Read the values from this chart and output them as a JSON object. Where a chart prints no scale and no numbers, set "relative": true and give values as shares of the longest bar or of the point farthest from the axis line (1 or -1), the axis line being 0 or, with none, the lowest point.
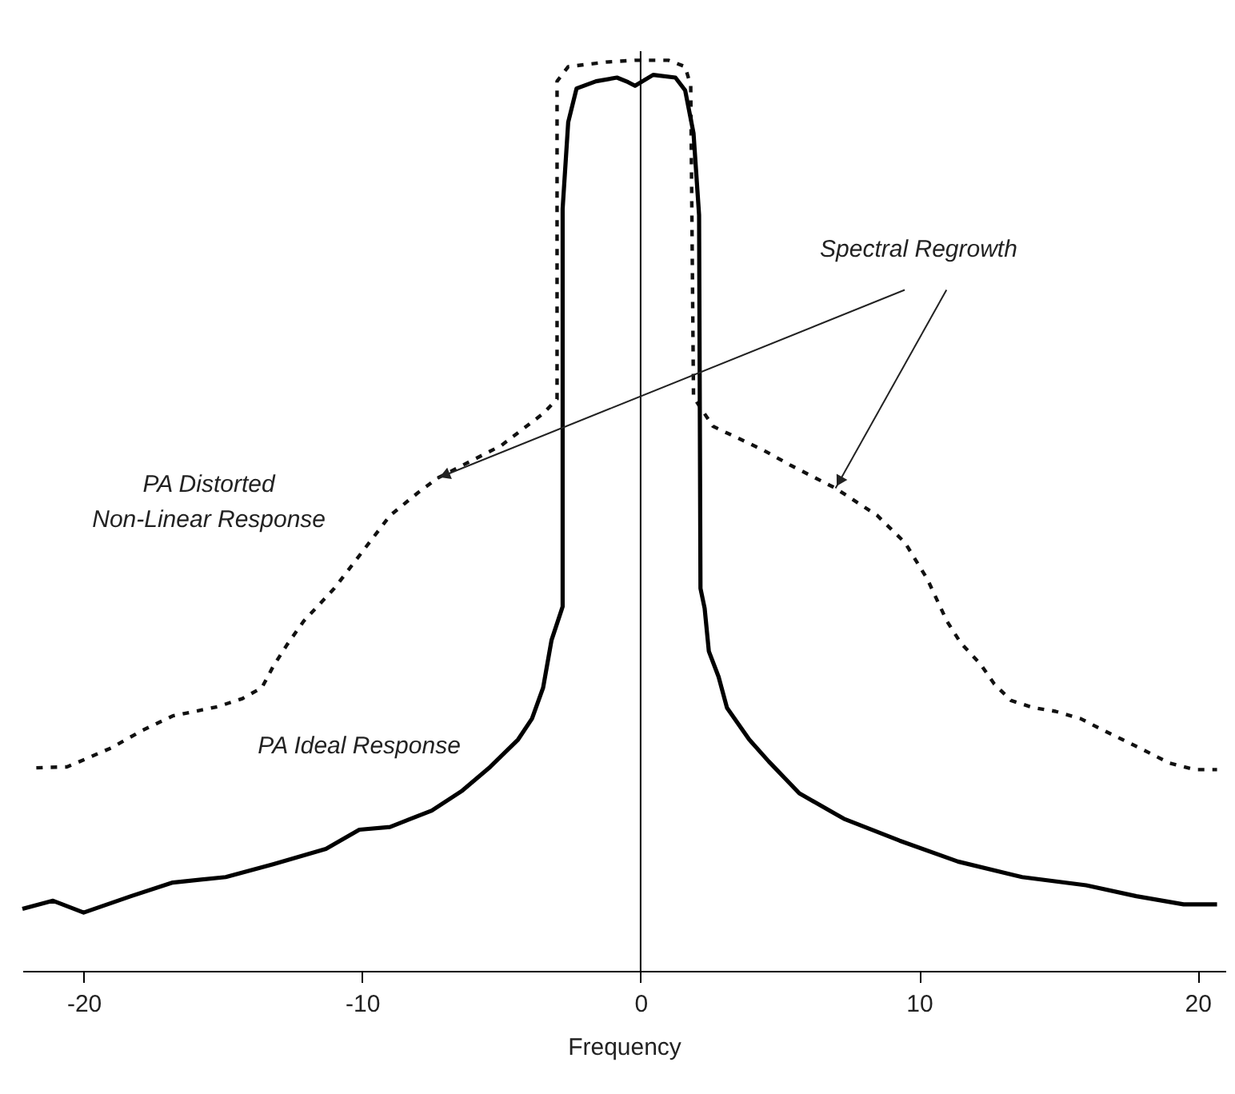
{
  "chart_data": {
    "type": "line",
    "xlabel": "Frequency",
    "relative": true,
    "xlim": [
      -22.2,
      21
    ],
    "xticks": [
      -20,
      -10,
      0,
      10,
      20
    ],
    "grid": false,
    "annotations": [
      "Spectral Regrowth"
    ],
    "ref_lines": [
      {
        "axis": "x",
        "value": 0,
        "color": "#000000"
      }
    ],
    "series": [
      {
        "name": "PA Distorted Non-Linear Response",
        "color": "#111111",
        "line_style": "dashed",
        "x": [
          -21.7,
          -20.6,
          -19.9,
          -19.0,
          -17.9,
          -16.8,
          -15.2,
          -14.3,
          -13.6,
          -13.2,
          -12.7,
          -12.1,
          -11,
          -10,
          -9,
          -8,
          -7.3,
          -5.0,
          -3.5,
          -3.0,
          -3.0,
          -2.6,
          -1.25,
          -0.2,
          1.0,
          1.6,
          1.8,
          1.9,
          2.6,
          4.4,
          5.4,
          7,
          8.5,
          9.5,
          10.3,
          11.0,
          11.5,
          12.2,
          12.7,
          13.3,
          14.1,
          14.9,
          15.8,
          16.5,
          17.3,
          18.1,
          19.0,
          19.9,
          20.7
        ],
        "values": [
          0.223,
          0.224,
          0.233,
          0.245,
          0.264,
          0.28,
          0.29,
          0.299,
          0.311,
          0.334,
          0.358,
          0.384,
          0.42,
          0.46,
          0.5,
          0.525,
          0.541,
          0.577,
          0.612,
          0.628,
          0.977,
          0.993,
          0.998,
          1.0,
          1.0,
          0.993,
          0.972,
          0.63,
          0.598,
          0.572,
          0.555,
          0.53,
          0.5,
          0.47,
          0.43,
          0.384,
          0.36,
          0.337,
          0.315,
          0.297,
          0.289,
          0.285,
          0.277,
          0.266,
          0.254,
          0.242,
          0.228,
          0.221,
          0.221
        ]
      },
      {
        "name": "PA Ideal Response",
        "color": "#000000",
        "line_style": "solid",
        "x": [
          -22.2,
          -21.1,
          -20.0,
          -18.3,
          -16.8,
          -14.9,
          -13.2,
          -11.3,
          -10.1,
          -9.0,
          -7.5,
          -6.4,
          -5.4,
          -4.4,
          -3.9,
          -3.5,
          -3.2,
          -2.8,
          -2.8,
          -2.6,
          -2.3,
          -1.6,
          -0.85,
          -0.45,
          -0.2,
          0.45,
          1.25,
          1.6,
          1.9,
          2.1,
          2.15,
          2.3,
          2.45,
          2.8,
          3.1,
          3.9,
          4.6,
          5.7,
          7.3,
          9.3,
          11.4,
          13.7,
          16.0,
          17.8,
          19.5,
          20.7
        ],
        "values": [
          0.068,
          0.077,
          0.064,
          0.082,
          0.097,
          0.103,
          0.117,
          0.134,
          0.155,
          0.158,
          0.176,
          0.198,
          0.224,
          0.254,
          0.277,
          0.311,
          0.363,
          0.4,
          0.837,
          0.932,
          0.969,
          0.977,
          0.981,
          0.976,
          0.972,
          0.984,
          0.981,
          0.967,
          0.92,
          0.83,
          0.42,
          0.398,
          0.351,
          0.323,
          0.289,
          0.254,
          0.23,
          0.195,
          0.167,
          0.143,
          0.12,
          0.103,
          0.094,
          0.082,
          0.073,
          0.073
        ]
      }
    ]
  }
}
